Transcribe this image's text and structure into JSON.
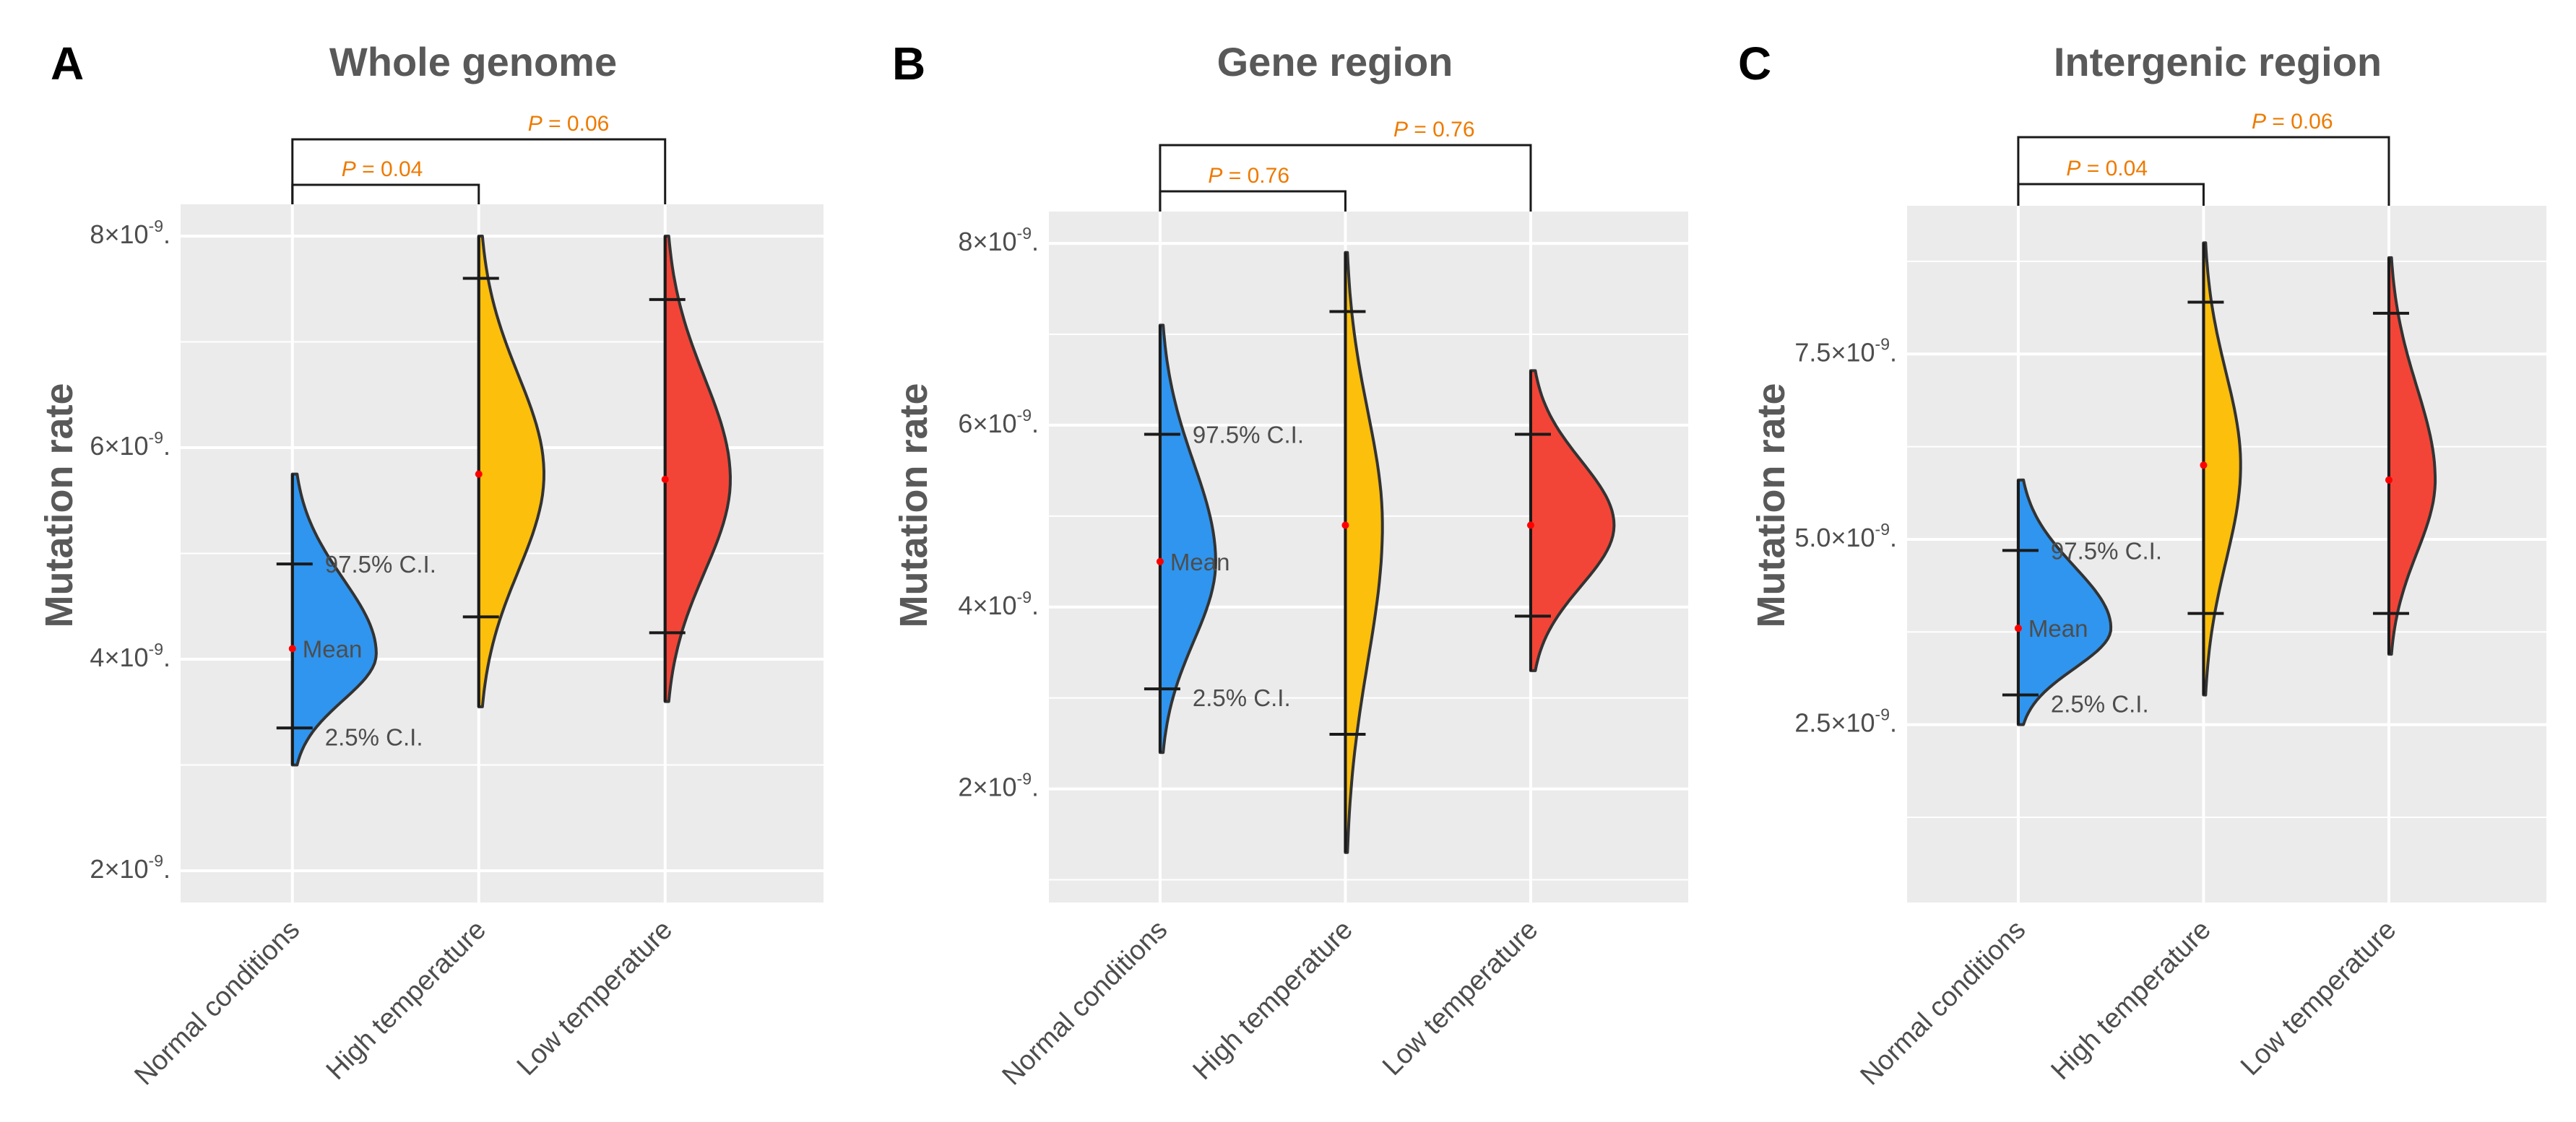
{
  "chart_data": [
    {
      "type": "violin",
      "panel_letter": "A",
      "title": "Whole genome",
      "ylabel": "Mutation rate",
      "categories": [
        "Normal conditions",
        "High temperature",
        "Low temperature"
      ],
      "colors": [
        "#2f95ee",
        "#fbbf0c",
        "#f24537"
      ],
      "ylim": [
        1.7,
        8.3
      ],
      "yticks": [
        {
          "value": 2,
          "mant": "2",
          "label": "2×10⁻⁹"
        },
        {
          "value": 4,
          "mant": "4",
          "label": "4×10⁻⁹"
        },
        {
          "value": 6,
          "mant": "6",
          "label": "6×10⁻⁹"
        },
        {
          "value": 8,
          "mant": "8",
          "label": "8×10⁻⁹"
        }
      ],
      "minor_grid": [
        3,
        5,
        7
      ],
      "ytick_base": "×10",
      "ytick_exp": "-9",
      "series": [
        {
          "name": "Normal conditions",
          "min": 3.0,
          "max": 5.75,
          "peak": 4.05,
          "lower_ci": 3.35,
          "mean": 4.1,
          "upper_ci": 4.9,
          "width": 0.45
        },
        {
          "name": "High temperature",
          "min": 3.55,
          "max": 8.0,
          "peak": 5.75,
          "lower_ci": 4.4,
          "mean": 5.75,
          "upper_ci": 7.6,
          "width": 0.35
        },
        {
          "name": "Low temperature",
          "min": 3.6,
          "max": 8.0,
          "peak": 5.7,
          "lower_ci": 4.25,
          "mean": 5.7,
          "upper_ci": 7.4,
          "width": 0.35
        }
      ],
      "annotations": {
        "upper": "97.5% C.I.",
        "mean": "Mean",
        "lower": "2.5% C.I."
      },
      "comparisons": [
        {
          "from": 0,
          "to": 1,
          "p_label": "P",
          "p_value": " = 0.04",
          "level": 1
        },
        {
          "from": 0,
          "to": 2,
          "p_label": "P",
          "p_value": " = 0.06",
          "level": 2
        }
      ]
    },
    {
      "type": "violin",
      "panel_letter": "B",
      "title": "Gene region",
      "ylabel": "Mutation rate",
      "categories": [
        "Normal conditions",
        "High temperature",
        "Low temperature"
      ],
      "colors": [
        "#2f95ee",
        "#fbbf0c",
        "#f24537"
      ],
      "ylim": [
        0.75,
        8.35
      ],
      "yticks": [
        {
          "value": 2,
          "mant": "2",
          "label": "2×10⁻⁹"
        },
        {
          "value": 4,
          "mant": "4",
          "label": "4×10⁻⁹"
        },
        {
          "value": 6,
          "mant": "6",
          "label": "6×10⁻⁹"
        },
        {
          "value": 8,
          "mant": "8",
          "label": "8×10⁻⁹"
        }
      ],
      "minor_grid": [
        1,
        3,
        5,
        7
      ],
      "ytick_base": "×10",
      "ytick_exp": "-9",
      "series": [
        {
          "name": "Normal conditions",
          "min": 2.4,
          "max": 7.1,
          "peak": 4.5,
          "lower_ci": 3.1,
          "mean": 4.5,
          "upper_ci": 5.9,
          "width": 0.3
        },
        {
          "name": "High temperature",
          "min": 1.3,
          "max": 7.9,
          "peak": 4.9,
          "lower_ci": 2.6,
          "mean": 4.9,
          "upper_ci": 7.25,
          "width": 0.2
        },
        {
          "name": "Low temperature",
          "min": 3.3,
          "max": 6.6,
          "peak": 4.9,
          "lower_ci": 3.9,
          "mean": 4.9,
          "upper_ci": 5.9,
          "width": 0.45
        }
      ],
      "annotations": {
        "upper": "97.5% C.I.",
        "mean": "Mean",
        "lower": "2.5% C.I."
      },
      "comparisons": [
        {
          "from": 0,
          "to": 1,
          "p_label": "P",
          "p_value": " = 0.76",
          "level": 1
        },
        {
          "from": 0,
          "to": 2,
          "p_label": "P",
          "p_value": " = 0.76",
          "level": 2
        }
      ]
    },
    {
      "type": "violin",
      "panel_letter": "C",
      "title": "Intergenic region",
      "ylabel": "Mutation rate",
      "categories": [
        "Normal conditions",
        "High temperature",
        "Low temperature"
      ],
      "colors": [
        "#2f95ee",
        "#fbbf0c",
        "#f24537"
      ],
      "ylim": [
        0.1,
        9.5
      ],
      "yticks": [
        {
          "value": 2.5,
          "mant": "2.5",
          "label": "2.5×10⁻⁹"
        },
        {
          "value": 5.0,
          "mant": "5.0",
          "label": "5.0×10⁻⁹"
        },
        {
          "value": 7.5,
          "mant": "7.5",
          "label": "7.5×10⁻⁹"
        }
      ],
      "minor_grid": [
        1.25,
        3.75,
        6.25,
        8.75
      ],
      "ytick_base": "×10",
      "ytick_exp": "-9",
      "series": [
        {
          "name": "Normal conditions",
          "min": 2.5,
          "max": 5.8,
          "peak": 3.8,
          "lower_ci": 2.9,
          "mean": 3.8,
          "upper_ci": 4.85,
          "width": 0.5
        },
        {
          "name": "High temperature",
          "min": 2.9,
          "max": 9.0,
          "peak": 6.0,
          "lower_ci": 4.0,
          "mean": 6.0,
          "upper_ci": 8.2,
          "width": 0.2
        },
        {
          "name": "Low temperature",
          "min": 3.45,
          "max": 8.8,
          "peak": 5.8,
          "lower_ci": 4.0,
          "mean": 5.8,
          "upper_ci": 8.05,
          "width": 0.25
        }
      ],
      "annotations": {
        "upper": "97.5% C.I.",
        "mean": "Mean",
        "lower": "2.5% C.I."
      },
      "comparisons": [
        {
          "from": 0,
          "to": 1,
          "p_label": "P",
          "p_value": " = 0.04",
          "level": 1
        },
        {
          "from": 0,
          "to": 2,
          "p_label": "P",
          "p_value": " = 0.06",
          "level": 2
        }
      ]
    }
  ]
}
